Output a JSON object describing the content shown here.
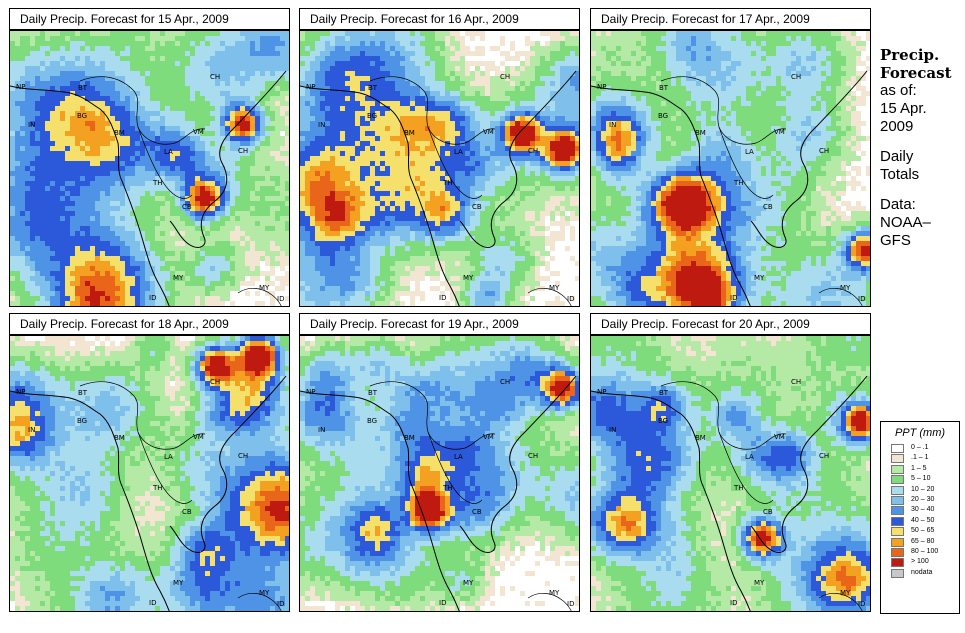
{
  "panels": [
    {
      "title": "Daily Precip. Forecast for  15 Apr., 2009",
      "seed": 11,
      "heavy": [
        [
          0.82,
          0.33
        ],
        [
          0.68,
          0.6
        ]
      ]
    },
    {
      "title": "Daily Precip. Forecast for  16 Apr., 2009",
      "seed": 23,
      "heavy": [
        [
          0.93,
          0.42
        ],
        [
          0.78,
          0.36
        ]
      ]
    },
    {
      "title": "Daily Precip. Forecast for  17 Apr., 2009",
      "seed": 37,
      "heavy": [
        [
          0.97,
          0.78
        ]
      ]
    },
    {
      "title": "Daily Precip. Forecast for  18 Apr., 2009",
      "seed": 41,
      "heavy": [
        [
          0.88,
          0.06
        ],
        [
          0.72,
          0.1
        ]
      ]
    },
    {
      "title": "Daily Precip. Forecast for  19 Apr., 2009",
      "seed": 53,
      "heavy": [
        [
          0.93,
          0.18
        ],
        [
          0.45,
          0.62
        ]
      ]
    },
    {
      "title": "Daily Precip. Forecast for  20 Apr., 2009",
      "seed": 67,
      "heavy": [
        [
          0.95,
          0.3
        ],
        [
          0.6,
          0.72
        ]
      ]
    }
  ],
  "country_labels": [
    "NP",
    "BT",
    "IN",
    "BG",
    "BM",
    "CH",
    "VM",
    "CH",
    "LA",
    "TH",
    "CB",
    "MY",
    "ID",
    "MY",
    "ID"
  ],
  "sidebar": {
    "heading": [
      "Precip.",
      "Forecast"
    ],
    "asof": [
      "as of:",
      "15 Apr.",
      "2009"
    ],
    "daily": [
      "Daily",
      "Totals"
    ],
    "data": [
      "Data:",
      "NOAA–",
      "GFS"
    ]
  },
  "legend": {
    "title": "PPT (mm)",
    "items": [
      {
        "label": "0 – .1",
        "color": "#ffffff"
      },
      {
        "label": ".1 – 1",
        "color": "#f2e6d2"
      },
      {
        "label": "1 – 5",
        "color": "#b4eaa6"
      },
      {
        "label": "5 – 10",
        "color": "#7edc7c"
      },
      {
        "label": "10 – 20",
        "color": "#a9dcef"
      },
      {
        "label": "20 – 30",
        "color": "#7fbfec"
      },
      {
        "label": "30 – 40",
        "color": "#4f93e6"
      },
      {
        "label": "40 – 50",
        "color": "#2b59d9"
      },
      {
        "label": "50 – 65",
        "color": "#f4e06b"
      },
      {
        "label": "65 – 80",
        "color": "#f4a020"
      },
      {
        "label": "80 – 100",
        "color": "#e8651a"
      },
      {
        "label": "> 100",
        "color": "#bf1a0f"
      },
      {
        "label": "nodata",
        "color": "#c8c8c8"
      }
    ]
  }
}
